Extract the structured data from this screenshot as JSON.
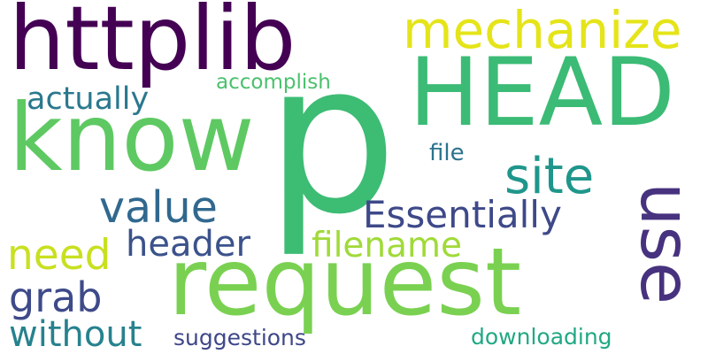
{
  "words": {
    "p": {
      "text": "p",
      "color": "#3dbc74"
    },
    "httplib": {
      "text": "httplib",
      "color": "#440154"
    },
    "head": {
      "text": "HEAD",
      "color": "#3bbb75"
    },
    "request": {
      "text": "request",
      "color": "#7ad151"
    },
    "know": {
      "text": "know",
      "color": "#5ec962"
    },
    "mechanize": {
      "text": "mechanize",
      "color": "#e5e419"
    },
    "use": {
      "text": "use",
      "color": "#46327e"
    },
    "site": {
      "text": "site",
      "color": "#1f968b"
    },
    "essentially": {
      "text": "Essentially",
      "color": "#3e4989"
    },
    "value": {
      "text": "value",
      "color": "#31688e"
    },
    "header": {
      "text": "header",
      "color": "#3b528b"
    },
    "filename": {
      "text": "filename",
      "color": "#a0da39"
    },
    "need": {
      "text": "need",
      "color": "#c8e020"
    },
    "grab": {
      "text": "grab",
      "color": "#3e4a89"
    },
    "without": {
      "text": "without",
      "color": "#26828e"
    },
    "actually": {
      "text": "actually",
      "color": "#2a788e"
    },
    "accomplish": {
      "text": "accomplish",
      "color": "#4ac16d"
    },
    "file": {
      "text": "file",
      "color": "#2c728e"
    },
    "suggestions": {
      "text": "suggestions",
      "color": "#3f4788"
    },
    "downloading": {
      "text": "downloading",
      "color": "#22a884"
    }
  }
}
